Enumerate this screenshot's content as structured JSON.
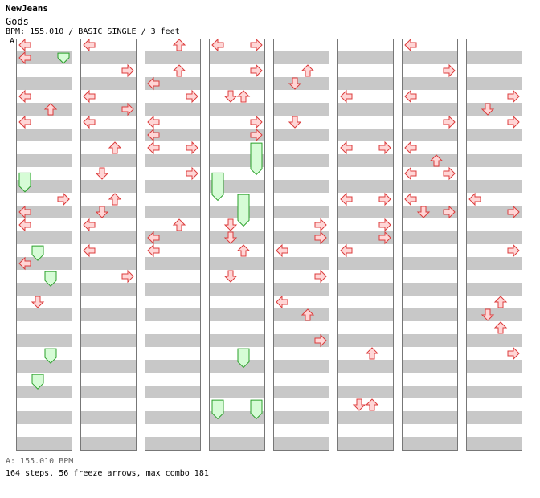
{
  "header": {
    "artist": "NewJeans",
    "title": "Gods",
    "info": "BPM: 155.010 / BASIC SINGLE / 3 feet",
    "marker": "A"
  },
  "footer": {
    "bpm_legend": "A: 155.010 BPM",
    "summary": "164 steps, 56 freeze arrows, max combo 181"
  },
  "chart_data": {
    "type": "step-chart",
    "columns": 8,
    "measures_per_column": 8,
    "lanes": [
      "left",
      "down",
      "up",
      "right"
    ],
    "colors": {
      "arrow_fill": "#ffd6d6",
      "arrow_stroke": "#dc3c3c",
      "freeze_fill": "#d6fcd6",
      "freeze_stroke": "#2aa02a",
      "band": "#c8c8c8"
    },
    "freezes": [
      {
        "col": 0,
        "lane": 3,
        "start": 1.13,
        "end": 1.86
      },
      {
        "col": 0,
        "lane": 0,
        "start": 10.46,
        "end": 11.86
      },
      {
        "col": 0,
        "lane": 1,
        "start": 16.13,
        "end": 17.2
      },
      {
        "col": 0,
        "lane": 2,
        "start": 18.13,
        "end": 19.2
      },
      {
        "col": 0,
        "lane": 2,
        "start": 24.13,
        "end": 25.2
      },
      {
        "col": 0,
        "lane": 1,
        "start": 26.13,
        "end": 27.2
      },
      {
        "col": 3,
        "lane": 0,
        "start": 10.46,
        "end": 12.53
      },
      {
        "col": 3,
        "lane": 3,
        "start": 8.13,
        "end": 10.53
      },
      {
        "col": 3,
        "lane": 2,
        "start": 12.13,
        "end": 14.53
      },
      {
        "col": 3,
        "lane": 0,
        "start": 28.13,
        "end": 29.53
      },
      {
        "col": 3,
        "lane": 3,
        "start": 28.13,
        "end": 29.53
      },
      {
        "col": 3,
        "lane": 2,
        "start": 24.13,
        "end": 25.53
      }
    ]
  }
}
